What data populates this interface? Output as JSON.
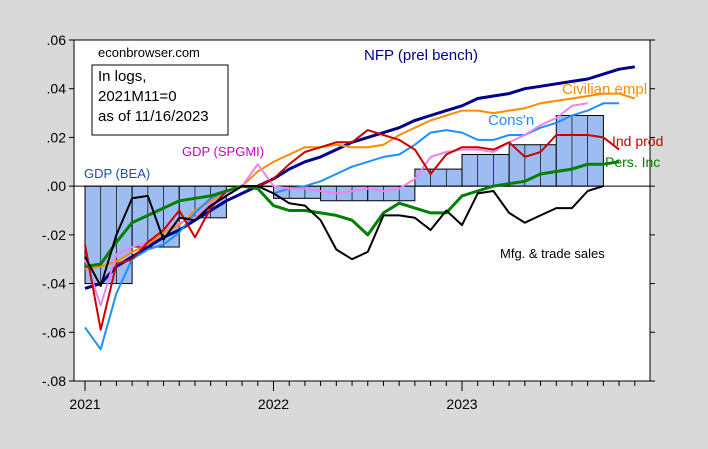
{
  "chart_data": {
    "type": "line",
    "source_label": "econbrowser.com",
    "note_lines": [
      "In logs,",
      "2021M11=0",
      "as of 11/16/2023"
    ],
    "y_ticks": [
      ".06",
      ".04",
      ".02",
      ".00",
      "-.02",
      "-.04",
      "-.06",
      "-.08"
    ],
    "y_tick_values": [
      0.06,
      0.04,
      0.02,
      0.0,
      -0.02,
      -0.04,
      -0.06,
      -0.08
    ],
    "ylim": [
      -0.08,
      0.06
    ],
    "xlim": [
      2021.0,
      2023.917
    ],
    "x_ticks": [
      "2021",
      "2022",
      "2023"
    ],
    "x_tick_values": [
      2021.0,
      2022.0,
      2023.0
    ],
    "grid": false,
    "bars": {
      "name": "GDP (BEA)",
      "color": "#9dbdf2",
      "quarters": [
        2021.0,
        2021.25,
        2021.5,
        2021.75,
        2022.0,
        2022.25,
        2022.5,
        2022.75,
        2023.0,
        2023.25,
        2023.5
      ],
      "values": [
        -0.04,
        -0.025,
        -0.013,
        0.0,
        -0.005,
        -0.006,
        -0.006,
        0.007,
        0.013,
        0.017,
        0.029
      ]
    },
    "series": [
      {
        "name": "NFP (prel bench)",
        "color": "#00008b",
        "width": 3,
        "start": 2021.0,
        "values": [
          -0.042,
          -0.04,
          -0.033,
          -0.029,
          -0.025,
          -0.021,
          -0.018,
          -0.014,
          -0.01,
          -0.006,
          -0.003,
          0.0,
          0.003,
          0.007,
          0.01,
          0.012,
          0.015,
          0.018,
          0.02,
          0.022,
          0.024,
          0.027,
          0.029,
          0.031,
          0.033,
          0.036,
          0.037,
          0.038,
          0.04,
          0.041,
          0.042,
          0.043,
          0.044,
          0.046,
          0.048,
          0.049
        ]
      },
      {
        "name": "Civilian empl",
        "color": "#ff8c00",
        "width": 2,
        "start": 2021.0,
        "values": [
          -0.034,
          -0.033,
          -0.031,
          -0.027,
          -0.024,
          -0.019,
          -0.016,
          -0.01,
          -0.006,
          -0.003,
          0.0,
          0.006,
          0.01,
          0.013,
          0.016,
          0.016,
          0.017,
          0.016,
          0.016,
          0.017,
          0.021,
          0.024,
          0.027,
          0.029,
          0.031,
          0.031,
          0.03,
          0.031,
          0.032,
          0.034,
          0.035,
          0.036,
          0.037,
          0.038,
          0.038,
          0.036
        ]
      },
      {
        "name": "Cons'n",
        "color": "#1e90ff",
        "width": 2,
        "start": 2021.0,
        "values": [
          -0.058,
          -0.067,
          -0.044,
          -0.03,
          -0.026,
          -0.024,
          -0.019,
          -0.011,
          -0.005,
          -0.002,
          0.0,
          0.0,
          -0.003,
          -0.001,
          0.0,
          0.002,
          0.005,
          0.008,
          0.01,
          0.012,
          0.013,
          0.017,
          0.022,
          0.023,
          0.022,
          0.019,
          0.019,
          0.021,
          0.021,
          0.024,
          0.026,
          0.029,
          0.031,
          0.034,
          0.034
        ]
      },
      {
        "name": "GDP (SPGMI)",
        "color": "#ee82ee",
        "width": 2,
        "start": 2021.0,
        "values": [
          -0.03,
          -0.049,
          -0.028,
          -0.025,
          -0.023,
          -0.018,
          -0.015,
          -0.013,
          -0.007,
          -0.003,
          0.0,
          0.009,
          0.0,
          -0.001,
          -0.001,
          -0.002,
          -0.003,
          -0.002,
          -0.001,
          -0.002,
          -0.001,
          0.003,
          0.012,
          0.014,
          0.015,
          0.015,
          0.014,
          0.018,
          0.021,
          0.025,
          0.028,
          0.033,
          0.034
        ]
      },
      {
        "name": "Ind prod",
        "color": "#cc0000",
        "width": 2,
        "start": 2021.0,
        "values": [
          -0.024,
          -0.059,
          -0.032,
          -0.03,
          -0.023,
          -0.018,
          -0.01,
          -0.021,
          -0.009,
          -0.002,
          0.0,
          0.0,
          0.003,
          0.009,
          0.014,
          0.016,
          0.018,
          0.018,
          0.023,
          0.021,
          0.019,
          0.015,
          0.005,
          0.013,
          0.016,
          0.016,
          0.015,
          0.018,
          0.012,
          0.014,
          0.021,
          0.021,
          0.021,
          0.02,
          0.015
        ]
      },
      {
        "name": "Pers. Inc",
        "color": "#008000",
        "width": 3,
        "start": 2021.0,
        "values": [
          -0.033,
          -0.032,
          -0.023,
          -0.015,
          -0.012,
          -0.009,
          -0.006,
          -0.005,
          -0.004,
          -0.002,
          0.0,
          -0.001,
          -0.008,
          -0.01,
          -0.01,
          -0.011,
          -0.012,
          -0.014,
          -0.02,
          -0.011,
          -0.007,
          -0.009,
          -0.011,
          -0.011,
          -0.004,
          -0.002,
          0.0,
          0.001,
          0.002,
          0.005,
          0.006,
          0.007,
          0.009,
          0.009,
          0.01
        ]
      },
      {
        "name": "Mfg. & trade sales",
        "color": "#000000",
        "width": 2,
        "start": 2021.0,
        "values": [
          -0.029,
          -0.041,
          -0.02,
          -0.005,
          -0.004,
          -0.022,
          -0.013,
          -0.014,
          -0.008,
          -0.004,
          0.0,
          0.0,
          -0.003,
          -0.007,
          -0.008,
          -0.014,
          -0.026,
          -0.03,
          -0.027,
          -0.012,
          -0.012,
          -0.013,
          -0.018,
          -0.01,
          -0.016,
          -0.003,
          -0.002,
          -0.011,
          -0.015,
          -0.012,
          -0.009,
          -0.009,
          -0.002,
          0.0
        ]
      }
    ],
    "labels": {
      "nfp": "NFP (prel bench)",
      "civ": "Civilian empl",
      "cons": "Cons'n",
      "gdp_spgmi": "GDP (SPGMI)",
      "ind_prod": "Ind prod",
      "pers_inc": "Pers. Inc",
      "gdp_bea": "GDP (BEA)",
      "mfg": "Mfg. & trade sales"
    }
  }
}
